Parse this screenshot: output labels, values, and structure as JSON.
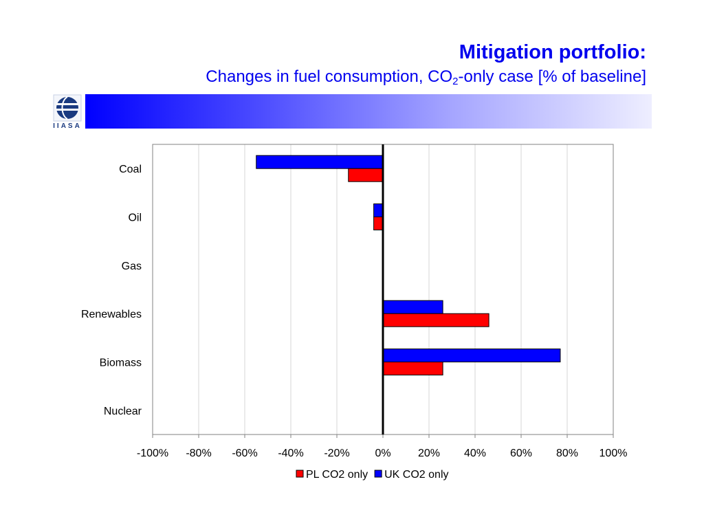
{
  "header": {
    "title": "Mitigation portfolio:",
    "subtitle_pre": "Changes in fuel consumption, CO",
    "subtitle_sub": "2",
    "subtitle_post": "-only case [% of baseline]",
    "logo_text": "IIASA",
    "accent_color": "#0000ee"
  },
  "chart_data": {
    "type": "bar",
    "orientation": "horizontal",
    "categories": [
      "Coal",
      "Oil",
      "Gas",
      "Renewables",
      "Biomass",
      "Nuclear"
    ],
    "series": [
      {
        "name": "UK CO2 only",
        "color": "#0000ff",
        "values": [
          -55,
          -4,
          0,
          26,
          77,
          0
        ]
      },
      {
        "name": "PL CO2 only",
        "color": "#ff0000",
        "values": [
          -15,
          -4,
          0,
          46,
          26,
          0
        ]
      }
    ],
    "xlim": [
      -100,
      100
    ],
    "xticks": [
      "-100%",
      "-80%",
      "-60%",
      "-40%",
      "-20%",
      "0%",
      "20%",
      "40%",
      "60%",
      "80%",
      "100%"
    ],
    "grid": true,
    "legend": {
      "position": "bottom",
      "entries": [
        "PL CO2 only",
        "UK CO2 only"
      ]
    }
  }
}
